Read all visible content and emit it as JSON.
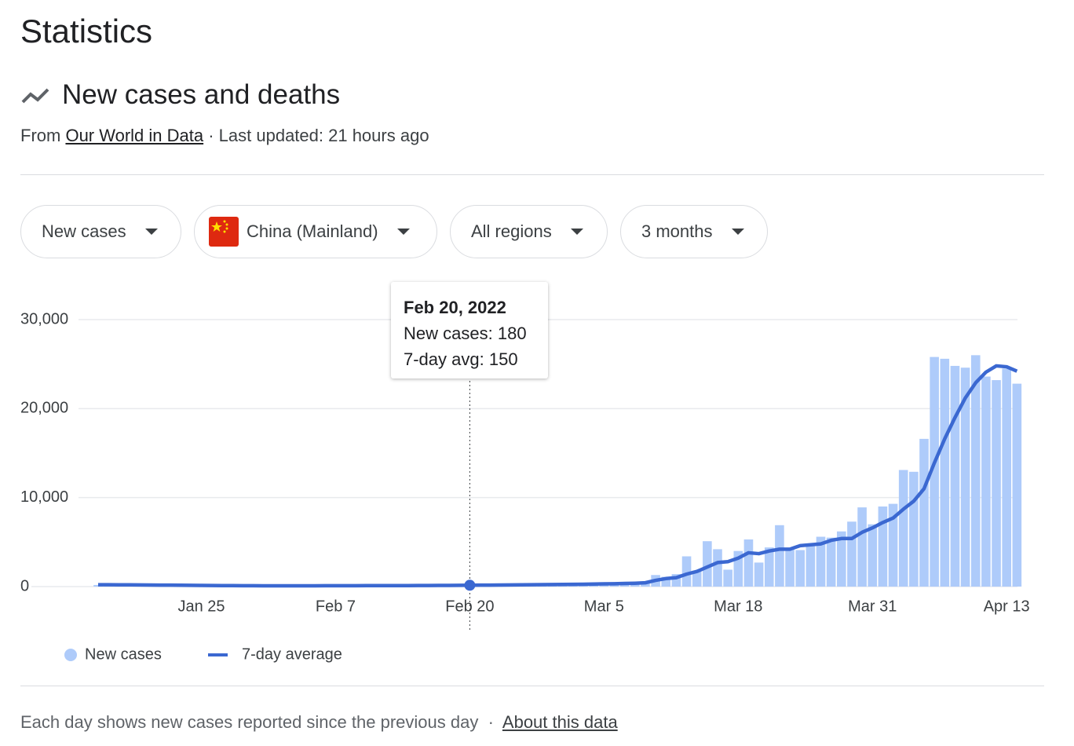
{
  "header": {
    "title": "Statistics",
    "section_title": "New cases and deaths",
    "source_prefix": "From",
    "source_link": "Our World in Data",
    "updated": "· Last updated: 21 hours ago"
  },
  "filters": [
    "New cases",
    "China (Mainland)",
    "All regions",
    "3 months"
  ],
  "chart_data": {
    "type": "bar",
    "categories": [
      null,
      null,
      null,
      null,
      null,
      null,
      null,
      null,
      null,
      null,
      "Jan 25",
      null,
      null,
      null,
      null,
      null,
      null,
      null,
      null,
      null,
      null,
      null,
      null,
      "Feb 7",
      null,
      null,
      null,
      null,
      null,
      null,
      null,
      null,
      null,
      null,
      null,
      null,
      "Feb 20",
      null,
      null,
      null,
      null,
      null,
      null,
      null,
      null,
      null,
      null,
      null,
      null,
      "Mar 5",
      null,
      null,
      null,
      null,
      null,
      null,
      null,
      null,
      null,
      null,
      null,
      null,
      "Mar 18",
      null,
      null,
      null,
      null,
      null,
      null,
      null,
      null,
      null,
      null,
      null,
      null,
      "Mar 31",
      null,
      null,
      null,
      null,
      null,
      null,
      null,
      null,
      null,
      null,
      null,
      null,
      "Apr 13",
      null
    ],
    "series": [
      {
        "name": "New cases",
        "type": "bar",
        "color": "#aecbfa",
        "values": [
          180,
          190,
          210,
          170,
          160,
          150,
          140,
          130,
          120,
          110,
          100,
          90,
          95,
          85,
          80,
          75,
          70,
          80,
          90,
          100,
          95,
          90,
          100,
          110,
          105,
          100,
          110,
          120,
          115,
          110,
          120,
          130,
          140,
          150,
          160,
          170,
          180,
          170,
          190,
          200,
          210,
          230,
          240,
          250,
          260,
          280,
          300,
          320,
          350,
          380,
          300,
          400,
          350,
          450,
          1300,
          1100,
          1400,
          3400,
          1800,
          5100,
          4200,
          1900,
          4000,
          5300,
          2700,
          4400,
          6900,
          4300,
          4100,
          4700,
          5600,
          5500,
          6200,
          7300,
          8900,
          7000,
          9000,
          9300,
          13100,
          12900,
          16600,
          25800,
          25600,
          24800,
          24600,
          26000,
          23600,
          23200,
          24500,
          22800
        ]
      },
      {
        "name": "7-day average",
        "type": "line",
        "color": "#3b68d1",
        "values": [
          210,
          205,
          200,
          195,
          190,
          180,
          170,
          160,
          150,
          140,
          130,
          120,
          110,
          105,
          100,
          95,
          90,
          90,
          90,
          90,
          90,
          92,
          95,
          98,
          100,
          102,
          105,
          108,
          110,
          112,
          115,
          120,
          125,
          130,
          135,
          140,
          150,
          160,
          170,
          180,
          190,
          200,
          210,
          220,
          230,
          240,
          250,
          270,
          290,
          310,
          320,
          350,
          380,
          430,
          700,
          900,
          1000,
          1400,
          1700,
          2200,
          2700,
          2800,
          3200,
          3800,
          3700,
          4000,
          4200,
          4200,
          4600,
          4700,
          4800,
          5200,
          5400,
          5400,
          6100,
          6600,
          7200,
          7700,
          8700,
          9600,
          11000,
          13900,
          16600,
          19000,
          21200,
          22900,
          24100,
          24800,
          24700,
          24200
        ]
      }
    ],
    "ylim": [
      0,
      30000
    ],
    "yticks": [
      0,
      {
        "value": 10000,
        "label": "10,000"
      },
      {
        "value": 20000,
        "label": "20,000"
      },
      {
        "value": 30000,
        "label": "30,000"
      }
    ],
    "grid": true
  },
  "tooltip": {
    "title": "Feb 20, 2022",
    "case_label": "New cases:",
    "avg_label": "7-day avg:"
  },
  "footer": {
    "note": "Each day shows new cases reported since the previous day",
    "separator": "·",
    "link": "About this data"
  }
}
